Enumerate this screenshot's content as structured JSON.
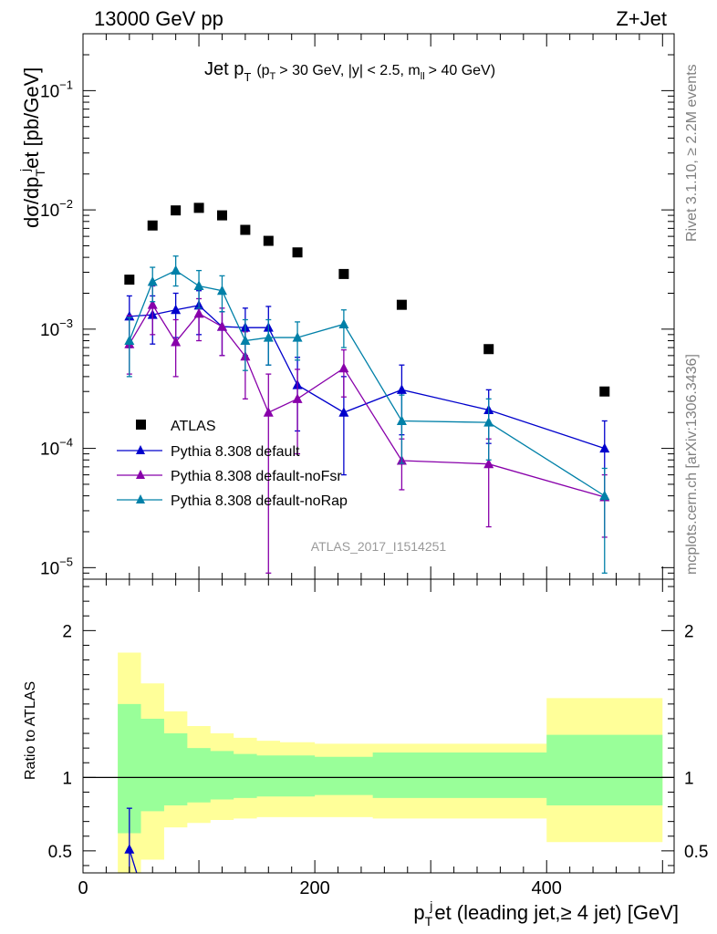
{
  "header": {
    "left": "13000 GeV pp",
    "right": "Z+Jet"
  },
  "side": {
    "top": "Rivet 3.1.10, ≥ 2.2M events",
    "bottom": "mcplots.cern.ch [arXiv:1306.3436]"
  },
  "watermark": "ATLAS_2017_I1514251",
  "chart_data": [
    {
      "type": "scatter",
      "title_main": "Jet p",
      "title_main_sub": "T",
      "title_cut_a": "(p",
      "title_cut_a_sub": "T",
      "title_cut_b": "> 30 GeV, |y| < 2.5, m",
      "title_cut_b_sub": "ll",
      "title_cut_c": "> 40 GeV)",
      "ylabel_a": "dσ/dp",
      "ylabel_sub_T": "T",
      "ylabel_sup_j": "j",
      "ylabel_b": "et [pb/GeV]",
      "yscale": "log",
      "ylim": [
        8e-06,
        0.3
      ],
      "xlim": [
        0,
        510
      ],
      "yticks": [
        {
          "v": 1e-05,
          "base": "10",
          "exp": "−5"
        },
        {
          "v": 0.0001,
          "base": "10",
          "exp": "−4"
        },
        {
          "v": 0.001,
          "base": "10",
          "exp": "−3"
        },
        {
          "v": 0.01,
          "base": "10",
          "exp": "−2"
        },
        {
          "v": 0.1,
          "base": "10",
          "exp": "−1"
        }
      ],
      "legend_position": "lower-left",
      "series": [
        {
          "name": "ATLAS",
          "color": "#000000",
          "marker": "square",
          "x": [
            40,
            60,
            80,
            100,
            120,
            140,
            160,
            185,
            225,
            275,
            350,
            450
          ],
          "y": [
            0.0026,
            0.0074,
            0.0099,
            0.0104,
            0.009,
            0.0068,
            0.0055,
            0.0044,
            0.0029,
            0.0016,
            0.00068,
            0.0003
          ]
        },
        {
          "name": "Pythia 8.308 default",
          "color": "#0000cc",
          "marker": "triangle",
          "x": [
            40,
            60,
            80,
            100,
            120,
            140,
            160,
            185,
            225,
            275,
            350,
            450
          ],
          "y": [
            0.00128,
            0.00132,
            0.00145,
            0.00158,
            0.00105,
            0.00103,
            0.00103,
            0.00034,
            0.0002,
            0.00031,
            0.00021,
            0.0001
          ],
          "err_hi": [
            0.0019,
            0.0019,
            0.002,
            0.0021,
            0.0014,
            0.0015,
            0.00155,
            0.00058,
            0.0004,
            0.0005,
            0.00031,
            0.00017
          ],
          "err_lo": [
            0.0007,
            0.00075,
            0.00085,
            0.0009,
            0.0006,
            0.0006,
            0.0005,
            0.00014,
            6e-05,
            0.00013,
            0.00011,
            4e-05
          ]
        },
        {
          "name": "Pythia 8.308 default-noFsr",
          "color": "#8800aa",
          "marker": "triangle",
          "x": [
            40,
            60,
            80,
            100,
            120,
            140,
            160,
            185,
            225,
            275,
            350,
            450
          ],
          "y": [
            0.00075,
            0.0016,
            0.00078,
            0.00135,
            0.00105,
            0.00059,
            0.0002,
            0.00026,
            0.00047,
            7.9e-05,
            7.4e-05,
            3.9e-05
          ],
          "err_hi": [
            0.0013,
            0.0023,
            0.0012,
            0.0018,
            0.0015,
            0.00095,
            0.00042,
            0.00046,
            0.00067,
            0.00012,
            0.00012,
            6e-05
          ],
          "err_lo": [
            0.00042,
            0.0009,
            0.0004,
            0.0008,
            0.0006,
            0.00026,
            9e-06,
            9e-05,
            0.00027,
            4.5e-05,
            2.2e-05,
            1.8e-05
          ]
        },
        {
          "name": "Pythia 8.308 default-noRap",
          "color": "#0080a8",
          "marker": "triangle",
          "x": [
            40,
            60,
            80,
            100,
            120,
            140,
            160,
            185,
            225,
            275,
            350,
            450
          ],
          "y": [
            0.0008,
            0.0025,
            0.0031,
            0.0023,
            0.0021,
            0.0008,
            0.00085,
            0.00085,
            0.0011,
            0.00017,
            0.000165,
            4e-05
          ],
          "err_hi": [
            0.00125,
            0.0033,
            0.0041,
            0.0031,
            0.0028,
            0.0012,
            0.0012,
            0.00115,
            0.00145,
            0.00028,
            0.00026,
            6.8e-05
          ],
          "err_lo": [
            0.0004,
            0.0017,
            0.0023,
            0.0015,
            0.0014,
            0.00045,
            0.0005,
            0.00055,
            0.0007,
            7.5e-05,
            8e-05,
            9e-06
          ]
        }
      ]
    },
    {
      "type": "area",
      "ylabel": "Ratio to ATLAS",
      "xlabel_a": "p",
      "xlabel_sub_T": "T",
      "xlabel_sup_j": "j",
      "xlabel_b": "et (leading jet,≥ 4 jet) [GeV]",
      "xlim": [
        0,
        510
      ],
      "ylim": [
        0.35,
        2.35
      ],
      "xticks": [
        0,
        200,
        400
      ],
      "yticks": [
        0.5,
        1,
        2
      ],
      "bands": {
        "edges": [
          30,
          50,
          70,
          90,
          110,
          130,
          150,
          170,
          200,
          250,
          300,
          400,
          500
        ],
        "yellow_lo": [
          0.3,
          0.44,
          0.66,
          0.69,
          0.71,
          0.72,
          0.73,
          0.73,
          0.73,
          0.72,
          0.72,
          0.56
        ],
        "yellow_hi": [
          1.85,
          1.64,
          1.45,
          1.35,
          1.3,
          1.27,
          1.25,
          1.24,
          1.23,
          1.23,
          1.23,
          1.54
        ],
        "green_lo": [
          0.62,
          0.77,
          0.81,
          0.83,
          0.85,
          0.86,
          0.87,
          0.87,
          0.88,
          0.86,
          0.86,
          0.81
        ],
        "green_hi": [
          1.5,
          1.4,
          1.3,
          1.2,
          1.18,
          1.16,
          1.15,
          1.15,
          1.14,
          1.17,
          1.17,
          1.29
        ]
      },
      "series": [
        {
          "name": "Pythia 8.308 default",
          "color": "#0000cc",
          "x": [
            40
          ],
          "y": [
            0.51
          ],
          "err_hi": [
            0.79
          ],
          "err_lo": [
            0.35
          ]
        }
      ]
    }
  ]
}
